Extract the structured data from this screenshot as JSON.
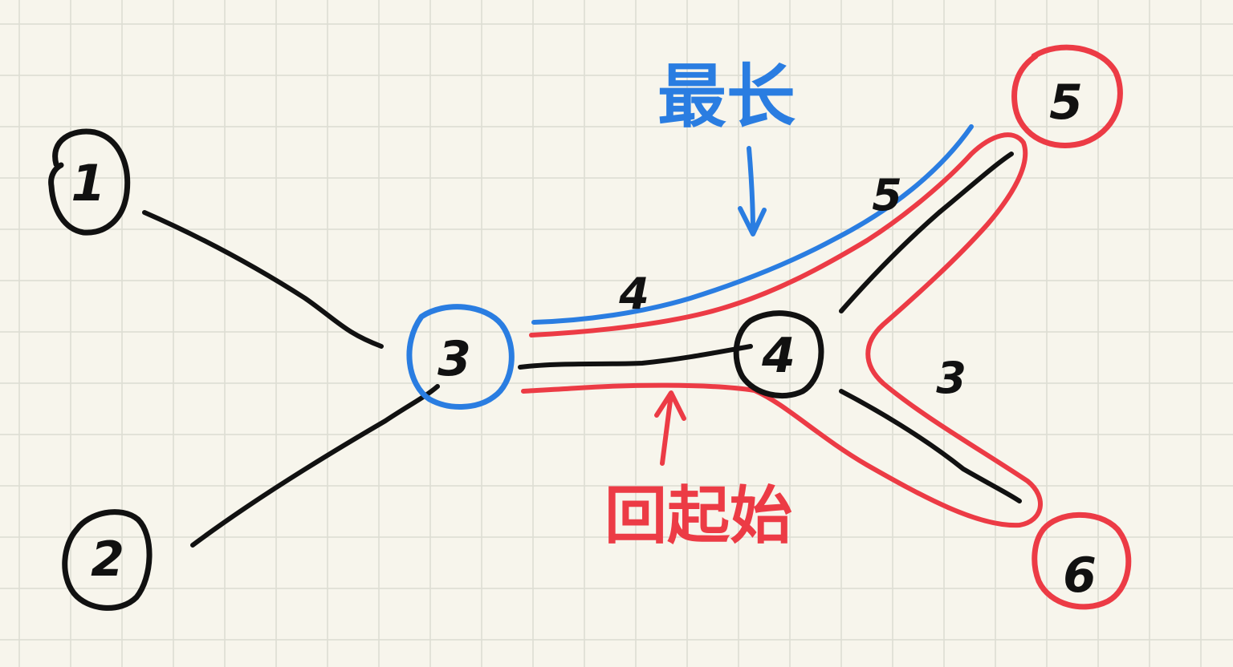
{
  "colors": {
    "background": "#f7f5ec",
    "grid": "#dcdcd2",
    "black": "#111111",
    "blue": "#2a7de1",
    "red": "#ec3b45"
  },
  "nodes": [
    {
      "id": "1",
      "label": "1",
      "ring_color": "black"
    },
    {
      "id": "2",
      "label": "2",
      "ring_color": "black"
    },
    {
      "id": "3",
      "label": "3",
      "ring_color": "blue"
    },
    {
      "id": "4",
      "label": "4",
      "ring_color": "black"
    },
    {
      "id": "5",
      "label": "5",
      "ring_color": "red"
    },
    {
      "id": "6",
      "label": "6",
      "ring_color": "red"
    }
  ],
  "edges": [
    {
      "from": "1",
      "to": "3",
      "weight": ""
    },
    {
      "from": "2",
      "to": "3",
      "weight": ""
    },
    {
      "from": "3",
      "to": "4",
      "weight": "4"
    },
    {
      "from": "4",
      "to": "5",
      "weight": "5"
    },
    {
      "from": "4",
      "to": "6",
      "weight": "3"
    }
  ],
  "annotations": {
    "longest": "最长",
    "back_to_start": "回起始"
  }
}
